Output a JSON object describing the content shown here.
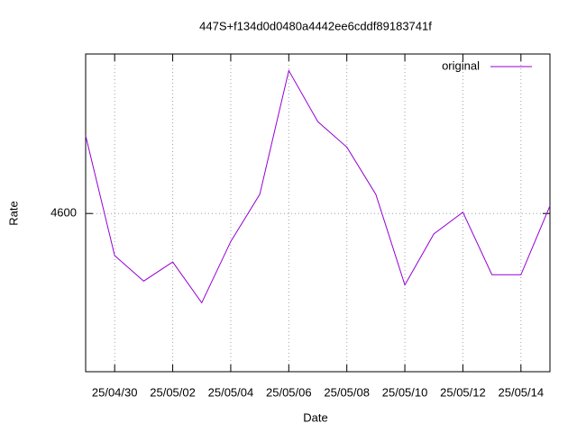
{
  "chart_data": {
    "type": "line",
    "title": "447S+f134d0d0480a4442ee6cddf89183741f",
    "xlabel": "Date",
    "ylabel": "Rate",
    "x": [
      "25/04/29",
      "25/04/30",
      "25/05/01",
      "25/05/02",
      "25/05/03",
      "25/05/04",
      "25/05/05",
      "25/05/06",
      "25/05/07",
      "25/05/08",
      "25/05/09",
      "25/05/10",
      "25/05/11",
      "25/05/12",
      "25/05/13",
      "25/05/14",
      "25/05/15"
    ],
    "series": [
      {
        "name": "original",
        "color": "#9400d3",
        "values": [
          4661,
          4567,
          4547,
          4562,
          4530,
          4578,
          4615,
          4712,
          4672,
          4652,
          4615,
          4544,
          4584,
          4601,
          4552,
          4552,
          4606
        ]
      }
    ],
    "xlim": [
      "25/04/29",
      "25/05/15"
    ],
    "xticks": [
      "25/04/30",
      "25/05/02",
      "25/05/04",
      "25/05/06",
      "25/05/08",
      "25/05/10",
      "25/05/12",
      "25/05/14"
    ],
    "ylim": [
      4476,
      4725
    ],
    "yticks": [
      4600
    ],
    "grid": true,
    "legend": "top-right"
  }
}
